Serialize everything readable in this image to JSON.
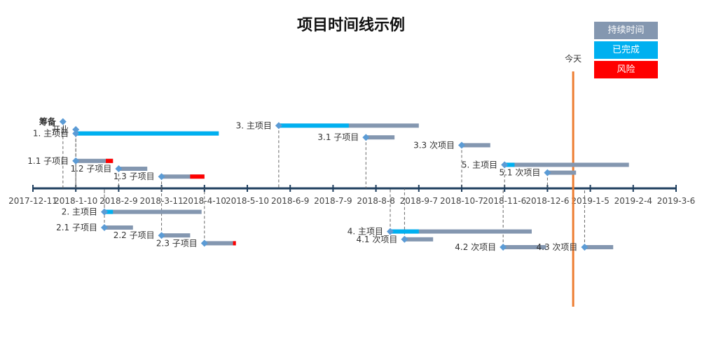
{
  "chart_data": {
    "type": "timeline",
    "title": "项目时间线示例",
    "legend": [
      {
        "label": "持续时间",
        "color": "#8497b0"
      },
      {
        "label": "已完成",
        "color": "#00b0f0"
      },
      {
        "label": "风险",
        "color": "#ff0000"
      }
    ],
    "legend_position": "top-right",
    "x_axis": {
      "ticks": [
        "2017-12-11",
        "2018-1-10",
        "2018-2-9",
        "2018-3-11",
        "2018-4-10",
        "2018-5-10",
        "2018-6-9",
        "2018-7-9",
        "2018-8-8",
        "2018-9-7",
        "2018-10-7",
        "2018-11-6",
        "2018-12-6",
        "2019-1-5",
        "2019-2-4",
        "2019-3-6"
      ],
      "range": [
        "2017-12-11",
        "2019-3-6"
      ]
    },
    "today": {
      "label": "今天",
      "date": "2018-12-24"
    },
    "milestones": [
      {
        "label": "筹备",
        "date": "2018-1-1",
        "height": 85,
        "bold": true
      },
      {
        "label": "开业",
        "date": "2018-1-10",
        "height": 75
      }
    ],
    "tasks": [
      {
        "label": "1. 主项目",
        "start": "2018-1-10",
        "end": "2018-4-20",
        "done": "2018-4-20",
        "risk": "",
        "height": 70
      },
      {
        "label": "1.1 子项目",
        "start": "2018-1-10",
        "end": "2018-2-5",
        "done": "",
        "risk": "2018-1-31",
        "height": 35
      },
      {
        "label": "1.2 子项目",
        "start": "2018-2-9",
        "end": "2018-3-1",
        "done": "",
        "risk": "",
        "height": 25
      },
      {
        "label": "1.3 子项目",
        "start": "2018-3-11",
        "end": "2018-4-10",
        "done": "",
        "risk": "2018-3-31",
        "height": 15
      },
      {
        "label": "2. 主项目",
        "start": "2018-1-30",
        "end": "2018-4-8",
        "done": "2018-2-5",
        "risk": "",
        "height": -30
      },
      {
        "label": "2.1 子项目",
        "start": "2018-1-30",
        "end": "2018-2-19",
        "done": "",
        "risk": "",
        "height": -50
      },
      {
        "label": "2.2 子项目",
        "start": "2018-3-11",
        "end": "2018-3-31",
        "done": "",
        "risk": "",
        "height": -60
      },
      {
        "label": "2.3 子项目",
        "start": "2018-4-10",
        "end": "2018-5-2",
        "done": "",
        "risk": "2018-4-30",
        "height": -70
      },
      {
        "label": "3. 主项目",
        "start": "2018-6-1",
        "end": "2018-9-7",
        "done": "2018-7-20",
        "risk": "",
        "height": 80
      },
      {
        "label": "3.1 子项目",
        "start": "2018-8-1",
        "end": "2018-8-21",
        "done": "",
        "risk": "",
        "height": 65
      },
      {
        "label": "3.3 次项目",
        "start": "2018-10-7",
        "end": "2018-10-27",
        "done": "",
        "risk": "",
        "height": 55
      },
      {
        "label": "4. 主项目",
        "start": "2018-8-18",
        "end": "2018-11-25",
        "done": "2018-9-7",
        "risk": "",
        "height": -55
      },
      {
        "label": "4.1 次项目",
        "start": "2018-8-28",
        "end": "2018-9-17",
        "done": "",
        "risk": "",
        "height": -65
      },
      {
        "label": "4.2 次项目",
        "start": "2018-11-5",
        "end": "2018-12-5",
        "done": "",
        "risk": "",
        "height": -75
      },
      {
        "label": "4.3 次项目",
        "start": "2019-1-1",
        "end": "2019-1-21",
        "done": "",
        "risk": "",
        "height": -75
      },
      {
        "label": "5. 主项目",
        "start": "2018-11-6",
        "end": "2019-2-1",
        "done": "2018-11-13",
        "risk": "",
        "height": 30
      },
      {
        "label": "5.1 次项目",
        "start": "2018-12-6",
        "end": "2018-12-26",
        "done": "",
        "risk": "",
        "height": 20
      }
    ],
    "colors": {
      "duration": "#8497b0",
      "complete": "#00b0f0",
      "risk": "#ff0000",
      "marker": "#5b9bd5",
      "axis": "#1f3f5f",
      "today": "#ed7d31"
    }
  }
}
